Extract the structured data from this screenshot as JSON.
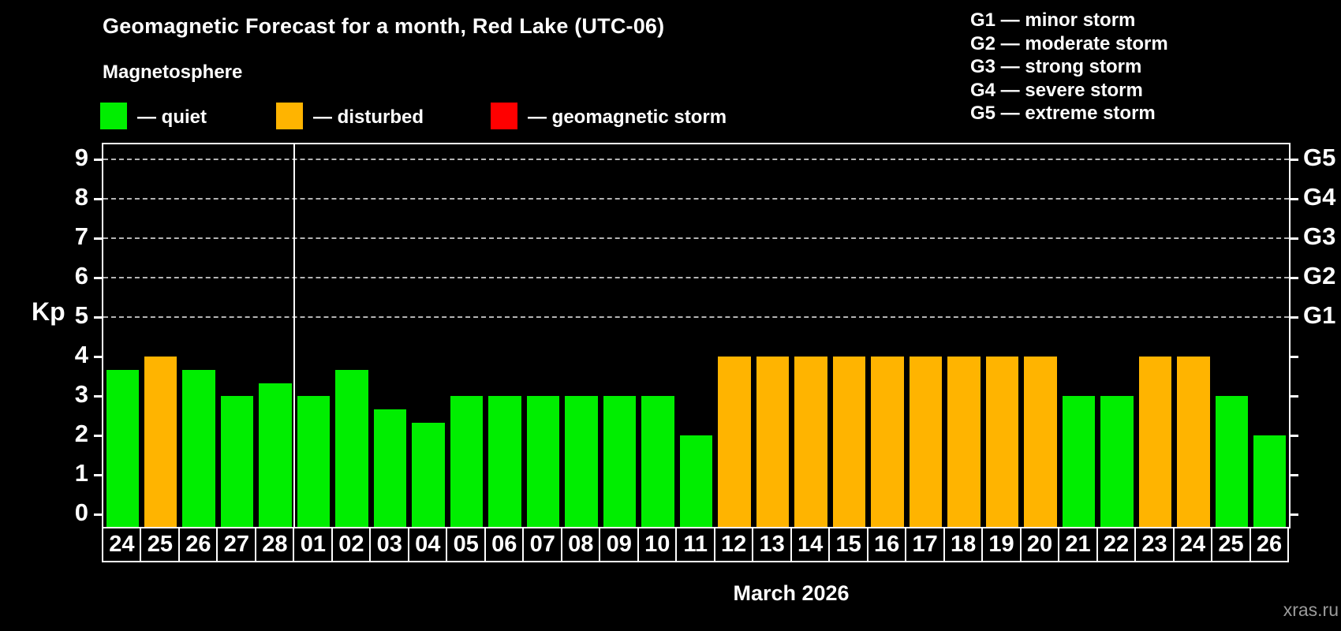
{
  "header": {
    "title": "Geomagnetic Forecast for a month, Red Lake (UTC-06)",
    "subtitle": "Magnetosphere",
    "legend": [
      {
        "label": "— quiet",
        "state": "quiet",
        "color": "#00ee00"
      },
      {
        "label": "— disturbed",
        "state": "disturbed",
        "color": "#ffb400"
      },
      {
        "label": "— geomagnetic storm",
        "state": "storm",
        "color": "#ff0000"
      }
    ],
    "g_legend": [
      "G1 — minor storm",
      "G2 — moderate storm",
      "G3 — strong storm",
      "G4 — severe storm",
      "G5 — extreme storm"
    ]
  },
  "chart_data": {
    "type": "bar",
    "title": "Geomagnetic Forecast for a month, Red Lake (UTC-06)",
    "ylabel": "Kp",
    "xlabel": "March 2026",
    "ylim": [
      0,
      9.4
    ],
    "grid": "horizontal dashed lines at Kp 5,6,7,8,9 (G1–G5); vertical white line separates February from March",
    "legend_position": "top",
    "categories": [
      "24",
      "25",
      "26",
      "27",
      "28",
      "01",
      "02",
      "03",
      "04",
      "05",
      "06",
      "07",
      "08",
      "09",
      "10",
      "11",
      "12",
      "13",
      "14",
      "15",
      "16",
      "17",
      "18",
      "19",
      "20",
      "21",
      "22",
      "23",
      "24",
      "25",
      "26"
    ],
    "values": [
      3.67,
      4,
      3.67,
      3,
      3.33,
      3,
      3.67,
      2.67,
      2.33,
      3,
      3,
      3,
      3,
      3,
      3,
      2,
      4,
      4,
      4,
      4,
      4,
      4,
      4,
      4,
      4,
      3,
      3,
      4,
      4,
      3,
      2
    ],
    "states": [
      "quiet",
      "disturbed",
      "quiet",
      "quiet",
      "quiet",
      "quiet",
      "quiet",
      "quiet",
      "quiet",
      "quiet",
      "quiet",
      "quiet",
      "quiet",
      "quiet",
      "quiet",
      "quiet",
      "disturbed",
      "disturbed",
      "disturbed",
      "disturbed",
      "disturbed",
      "disturbed",
      "disturbed",
      "disturbed",
      "disturbed",
      "quiet",
      "quiet",
      "disturbed",
      "disturbed",
      "quiet",
      "quiet"
    ],
    "kp_ticks": [
      0,
      1,
      2,
      3,
      4,
      5,
      6,
      7,
      8,
      9
    ],
    "g_ticks": [
      {
        "label": "G1",
        "kp": 5
      },
      {
        "label": "G2",
        "kp": 6
      },
      {
        "label": "G3",
        "kp": 7
      },
      {
        "label": "G4",
        "kp": 8
      },
      {
        "label": "G5",
        "kp": 9
      }
    ],
    "separator_index": 5,
    "colors": {
      "quiet": "#00ee00",
      "disturbed": "#ffb400",
      "storm": "#ff0000"
    }
  },
  "footer": {
    "month_label": "March 2026",
    "watermark": "xras.ru"
  }
}
